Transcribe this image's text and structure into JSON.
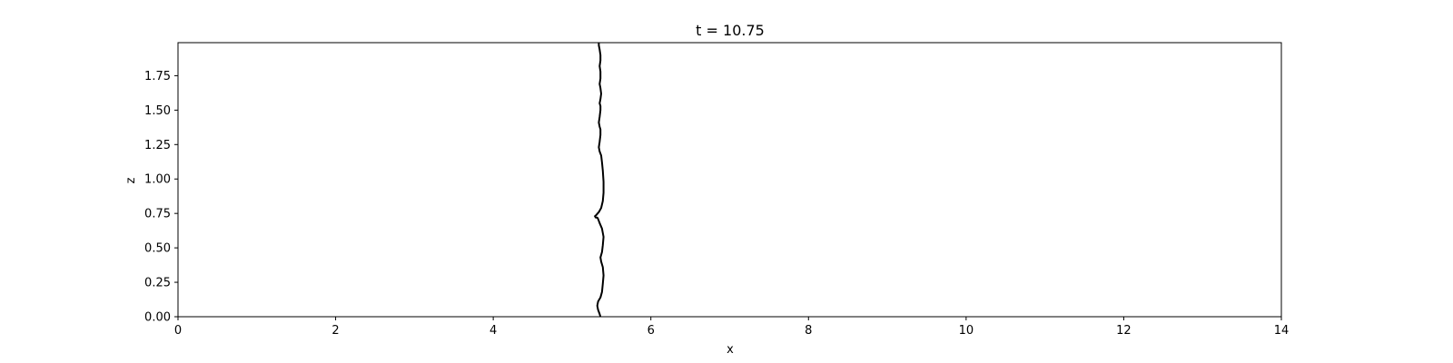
{
  "chart_data": {
    "type": "line",
    "title": "t = 10.75",
    "xlabel": "x",
    "ylabel": "z",
    "xlim": [
      0,
      14
    ],
    "ylim": [
      0,
      1.99
    ],
    "xticks": [
      {
        "value": 0,
        "label": "0"
      },
      {
        "value": 2,
        "label": "2"
      },
      {
        "value": 4,
        "label": "4"
      },
      {
        "value": 6,
        "label": "6"
      },
      {
        "value": 8,
        "label": "8"
      },
      {
        "value": 10,
        "label": "10"
      },
      {
        "value": 12,
        "label": "12"
      },
      {
        "value": 14,
        "label": "14"
      }
    ],
    "yticks": [
      {
        "value": 0.0,
        "label": "0.00"
      },
      {
        "value": 0.25,
        "label": "0.25"
      },
      {
        "value": 0.5,
        "label": "0.50"
      },
      {
        "value": 0.75,
        "label": "0.75"
      },
      {
        "value": 1.0,
        "label": "1.00"
      },
      {
        "value": 1.25,
        "label": "1.25"
      },
      {
        "value": 1.5,
        "label": "1.50"
      },
      {
        "value": 1.75,
        "label": "1.75"
      }
    ],
    "grid": false,
    "series": [
      {
        "color": "#000000",
        "points": [
          [
            5.36,
            0.0
          ],
          [
            5.35,
            0.02
          ],
          [
            5.33,
            0.05
          ],
          [
            5.32,
            0.08
          ],
          [
            5.33,
            0.11
          ],
          [
            5.36,
            0.14
          ],
          [
            5.38,
            0.18
          ],
          [
            5.39,
            0.24
          ],
          [
            5.4,
            0.3
          ],
          [
            5.39,
            0.36
          ],
          [
            5.37,
            0.4
          ],
          [
            5.36,
            0.43
          ],
          [
            5.38,
            0.47
          ],
          [
            5.39,
            0.52
          ],
          [
            5.4,
            0.58
          ],
          [
            5.38,
            0.64
          ],
          [
            5.35,
            0.68
          ],
          [
            5.33,
            0.71
          ],
          [
            5.32,
            0.72
          ],
          [
            5.3,
            0.72
          ],
          [
            5.29,
            0.73
          ],
          [
            5.31,
            0.74
          ],
          [
            5.34,
            0.76
          ],
          [
            5.37,
            0.79
          ],
          [
            5.39,
            0.84
          ],
          [
            5.4,
            0.9
          ],
          [
            5.4,
            0.98
          ],
          [
            5.39,
            1.06
          ],
          [
            5.38,
            1.12
          ],
          [
            5.37,
            1.17
          ],
          [
            5.35,
            1.2
          ],
          [
            5.34,
            1.23
          ],
          [
            5.35,
            1.27
          ],
          [
            5.36,
            1.32
          ],
          [
            5.36,
            1.36
          ],
          [
            5.35,
            1.38
          ],
          [
            5.34,
            1.41
          ],
          [
            5.35,
            1.45
          ],
          [
            5.36,
            1.5
          ],
          [
            5.36,
            1.53
          ],
          [
            5.35,
            1.55
          ],
          [
            5.36,
            1.58
          ],
          [
            5.37,
            1.62
          ],
          [
            5.36,
            1.66
          ],
          [
            5.35,
            1.69
          ],
          [
            5.36,
            1.73
          ],
          [
            5.36,
            1.78
          ],
          [
            5.35,
            1.82
          ],
          [
            5.36,
            1.86
          ],
          [
            5.36,
            1.9
          ],
          [
            5.35,
            1.94
          ],
          [
            5.34,
            1.97
          ],
          [
            5.34,
            1.99
          ]
        ]
      }
    ]
  }
}
